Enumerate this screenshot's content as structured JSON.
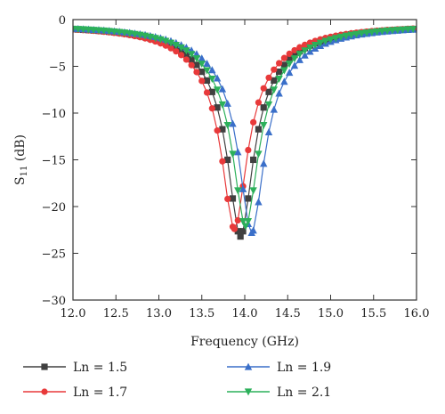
{
  "chart_data": {
    "type": "line",
    "xlabel": "Frequency (GHz)",
    "ylabel_main": "S",
    "ylabel_sub": "11",
    "ylabel_unit": " (dB)",
    "xlim": [
      12.0,
      16.0
    ],
    "ylim": [
      -30,
      0
    ],
    "x_ticks": [
      "12.0",
      "12.5",
      "13.0",
      "13.5",
      "14.0",
      "14.5",
      "15.0",
      "15.5",
      "16.0"
    ],
    "y_ticks": [
      "0",
      "−5",
      "−10",
      "−15",
      "−20",
      "−25",
      "−30"
    ],
    "grid": false,
    "legend_position": "bottom",
    "series": [
      {
        "name": "Ln = 1.5",
        "color": "#404040",
        "marker": "square",
        "f0": 13.95,
        "depth": -23.2
      },
      {
        "name": "Ln = 1.7",
        "color": "#e8393a",
        "marker": "circle",
        "f0": 13.88,
        "depth": -22.4
      },
      {
        "name": "Ln = 1.9",
        "color": "#3a6fc9",
        "marker": "triangle-up",
        "f0": 14.08,
        "depth": -22.8
      },
      {
        "name": "Ln = 2.1",
        "color": "#2cb05a",
        "marker": "triangle-down",
        "f0": 14.01,
        "depth": -22.1
      }
    ],
    "x_step": 0.06
  }
}
